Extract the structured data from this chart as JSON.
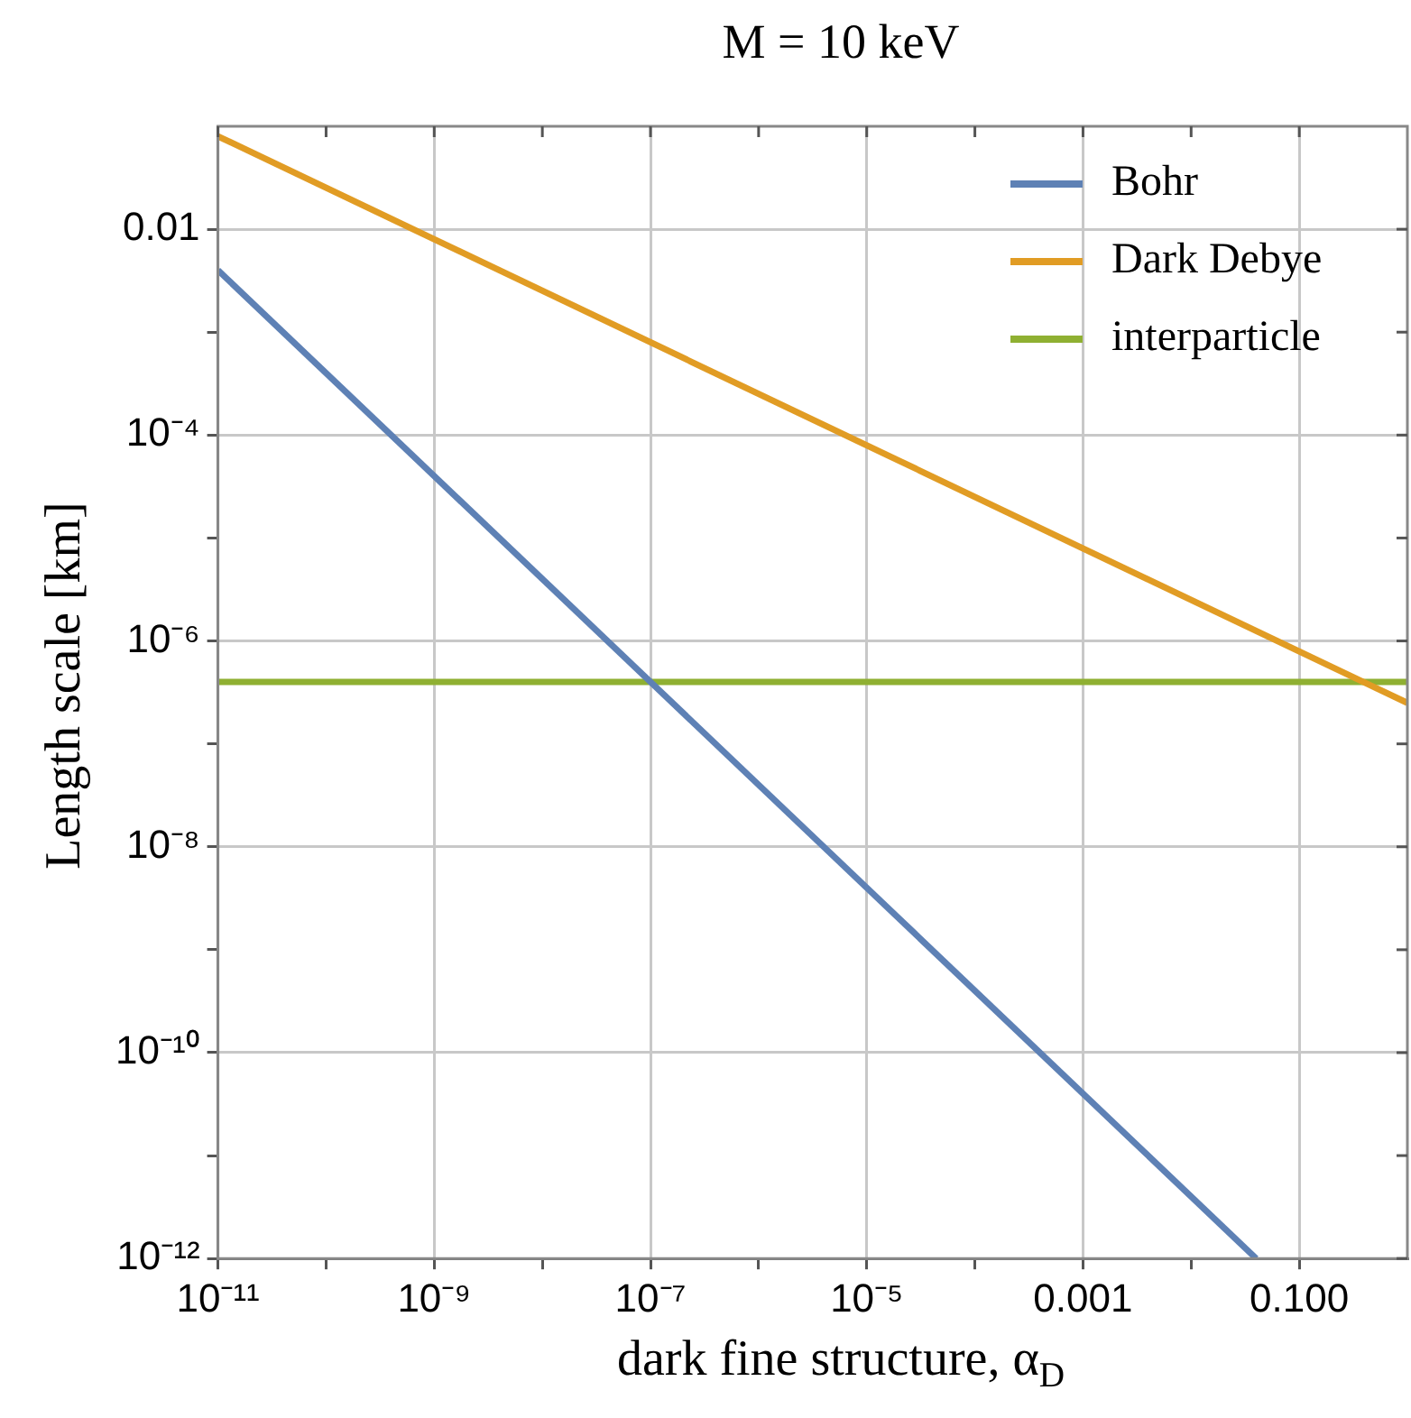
{
  "chart_data": {
    "type": "line",
    "title": "M = 10 keV",
    "xlabel": "dark fine structure, α$_{D}$",
    "ylabel": "Length scale [km]",
    "log": "xy",
    "grid": true,
    "legend": "top right",
    "marker": "none",
    "line_style": "solid",
    "xlim": [
      1e-11,
      1
    ],
    "ylim": [
      1e-12,
      0.1
    ],
    "xticks": [
      {
        "value": 1e-11,
        "label": "10⁻¹¹"
      },
      {
        "value": 1e-10,
        "label": null
      },
      {
        "value": 1e-09,
        "label": "10⁻⁹"
      },
      {
        "value": 1e-08,
        "label": null
      },
      {
        "value": 1e-07,
        "label": "10⁻⁷"
      },
      {
        "value": 1e-06,
        "label": null
      },
      {
        "value": 1e-05,
        "label": "10⁻⁵"
      },
      {
        "value": 0.0001,
        "label": null
      },
      0.001,
      {
        "value": 0.01,
        "label": null
      },
      {
        "value": 0.1,
        "label": "0.100"
      }
    ],
    "yticks": [
      {
        "value": 1e-12,
        "label": "10⁻¹²"
      },
      {
        "value": 1e-11,
        "label": null
      },
      {
        "value": 1e-10,
        "label": "10⁻¹⁰"
      },
      {
        "value": 1e-09,
        "label": null
      },
      {
        "value": 1e-08,
        "label": "10⁻⁸"
      },
      {
        "value": 1e-07,
        "label": null
      },
      {
        "value": 1e-06,
        "label": "10⁻⁶"
      },
      {
        "value": 1e-05,
        "label": null
      },
      {
        "value": 0.0001,
        "label": "10⁻⁴"
      },
      {
        "value": 0.001,
        "label": null
      },
      0.01
    ],
    "series": [
      {
        "name": "Bohr",
        "color": "#5e81b5",
        "x": [
          1e-11,
          0.04
        ],
        "values": [
          0.004,
          1e-12
        ]
      },
      {
        "name": "Dark Debye",
        "color": "#e19c24",
        "x": [
          1e-11,
          1
        ],
        "values": [
          0.08,
          2.5e-07
        ]
      },
      {
        "name": "interparticle",
        "color": "#8fb032",
        "x": [
          1e-11,
          1
        ],
        "values": [
          4e-07,
          4e-07
        ]
      }
    ]
  }
}
